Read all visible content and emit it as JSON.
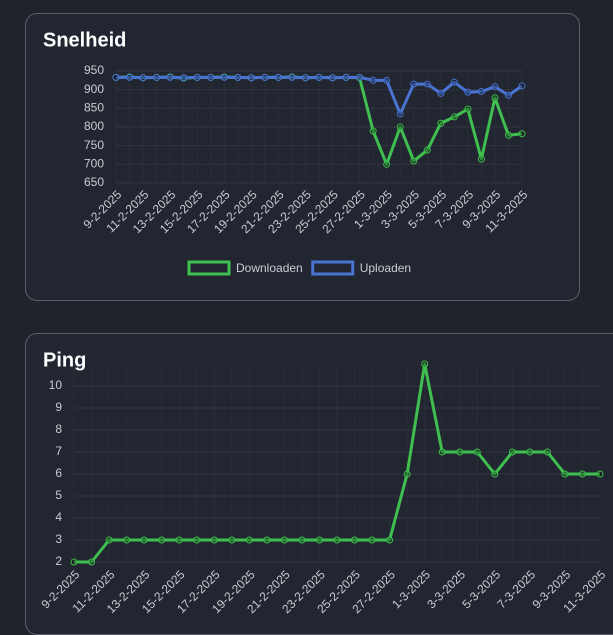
{
  "chart_data": [
    {
      "type": "line",
      "title": "Snelheid",
      "categories": [
        "9-2-2025",
        null,
        "11-2-2025",
        null,
        "13-2-2025",
        null,
        "15-2-2025",
        null,
        "17-2-2025",
        null,
        "19-2-2025",
        null,
        "21-2-2025",
        null,
        "23-2-2025",
        null,
        "25-2-2025",
        null,
        "27-2-2025",
        null,
        "1-3-2025",
        null,
        "3-3-2025",
        null,
        "5-3-2025",
        null,
        "7-3-2025",
        null,
        "9-3-2025",
        null,
        "11-3-2025"
      ],
      "series": [
        {
          "name": "Downloaden",
          "color": "#3fbf4f",
          "values": [
            933,
            934,
            932,
            933,
            934,
            931,
            933,
            933,
            934,
            933,
            932,
            933,
            933,
            934,
            932,
            933,
            932,
            933,
            932,
            789,
            700,
            800,
            709,
            738,
            810,
            827,
            848,
            714,
            878,
            778,
            782
          ]
        },
        {
          "name": "Uploaden",
          "color": "#4a74d4",
          "values": [
            933,
            933,
            932,
            933,
            933,
            932,
            933,
            933,
            933,
            933,
            932,
            933,
            933,
            933,
            932,
            933,
            932,
            933,
            933,
            925,
            925,
            835,
            915,
            915,
            890,
            920,
            893,
            895,
            908,
            885,
            910
          ]
        }
      ],
      "ylim": [
        650,
        950
      ],
      "yticks": [
        650,
        700,
        750,
        800,
        850,
        900,
        950
      ],
      "grid": true,
      "legend": "bottom"
    },
    {
      "type": "line",
      "title": "Ping",
      "categories": [
        "9-2-2025",
        null,
        "11-2-2025",
        null,
        "13-2-2025",
        null,
        "15-2-2025",
        null,
        "17-2-2025",
        null,
        "19-2-2025",
        null,
        "21-2-2025",
        null,
        "23-2-2025",
        null,
        "25-2-2025",
        null,
        "27-2-2025",
        null,
        "1-3-2025",
        null,
        "3-3-2025",
        null,
        "5-3-2025",
        null,
        "7-3-2025",
        null,
        "9-3-2025",
        null,
        "11-3-2025"
      ],
      "values": [
        2,
        2,
        3,
        3,
        3,
        3,
        3,
        3,
        3,
        3,
        3,
        3,
        3,
        3,
        3,
        3,
        3,
        3,
        3,
        6,
        11,
        7,
        7,
        7,
        6,
        7,
        7,
        7,
        6,
        6,
        6
      ],
      "color": "#3fbf4f",
      "ylim": [
        2,
        11
      ],
      "yticks": [
        2,
        3,
        4,
        5,
        6,
        7,
        8,
        9,
        10
      ],
      "grid": true
    }
  ]
}
